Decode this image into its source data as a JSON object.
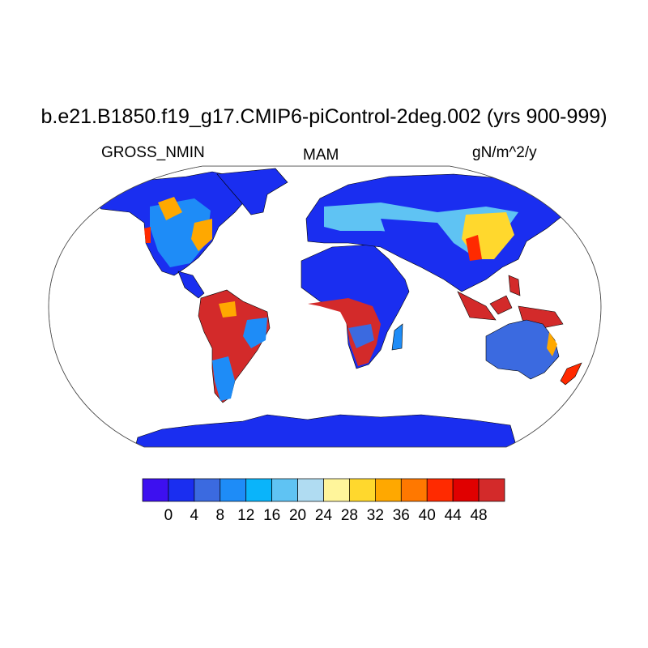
{
  "title": "b.e21.B1850.f19_g17.CMIP6-piControl-2deg.002 (yrs 900-999)",
  "left_string": "GROSS_NMIN",
  "center_string": "MAM",
  "right_string": "gN/m^2/y",
  "projection": "Robinson",
  "colorbar": {
    "labels": [
      "0",
      "4",
      "8",
      "12",
      "16",
      "20",
      "24",
      "28",
      "32",
      "36",
      "40",
      "44",
      "48"
    ],
    "colors": [
      "#3d10f0",
      "#1a2ef0",
      "#3b6ae0",
      "#1e8cf7",
      "#0ab4fa",
      "#5fc3f3",
      "#b0dcf2",
      "#fff59b",
      "#ffd82d",
      "#ffa800",
      "#ff7800",
      "#ff2a00",
      "#e00000",
      "#d32a2a"
    ]
  },
  "regions": [
    {
      "name": "north-america",
      "color": "#1a2ef0"
    },
    {
      "name": "greenland",
      "color": "#1a2ef0"
    },
    {
      "name": "south-america",
      "color": "#d32a2a"
    },
    {
      "name": "africa",
      "color": "#1a2ef0"
    },
    {
      "name": "eurasia",
      "color": "#1a2ef0"
    },
    {
      "name": "australia",
      "color": "#3b6ae0"
    },
    {
      "name": "maritime-continent",
      "color": "#d32a2a"
    },
    {
      "name": "antarctica",
      "color": "#1a2ef0"
    }
  ]
}
